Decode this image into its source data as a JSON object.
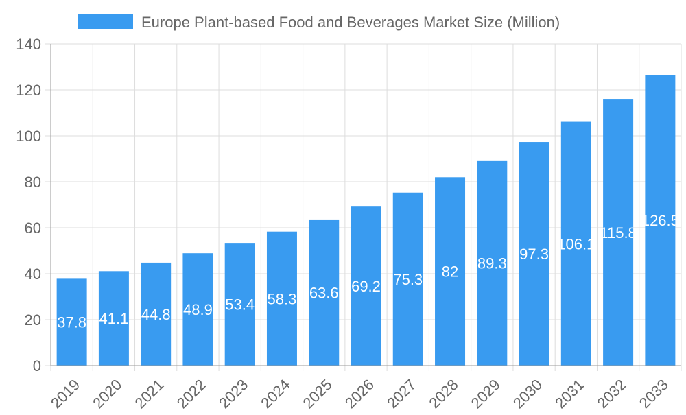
{
  "chart_data": {
    "type": "bar",
    "title": "",
    "legend": {
      "label": "Europe Plant-based Food and Beverages Market Size (Million)",
      "placement": "top"
    },
    "categories": [
      "2019",
      "2020",
      "2021",
      "2022",
      "2023",
      "2024",
      "2025",
      "2026",
      "2027",
      "2028",
      "2029",
      "2030",
      "2031",
      "2032",
      "2033"
    ],
    "series": [
      {
        "name": "Europe Plant-based Food and Beverages Market Size (Million)",
        "values": [
          37.8,
          41.1,
          44.8,
          48.9,
          53.4,
          58.3,
          63.6,
          69.2,
          75.3,
          82,
          89.3,
          97.3,
          106.1,
          115.8,
          126.5
        ]
      }
    ],
    "xlabel": "",
    "ylabel": "",
    "ylim": [
      0,
      140
    ],
    "yticks": [
      0,
      20,
      40,
      60,
      80,
      100,
      120,
      140
    ],
    "grid": true,
    "data_labels": true,
    "colors": {
      "bar": "#399bf0",
      "label": "#ffffff",
      "grid": "#dddddd",
      "text": "#666666"
    }
  }
}
